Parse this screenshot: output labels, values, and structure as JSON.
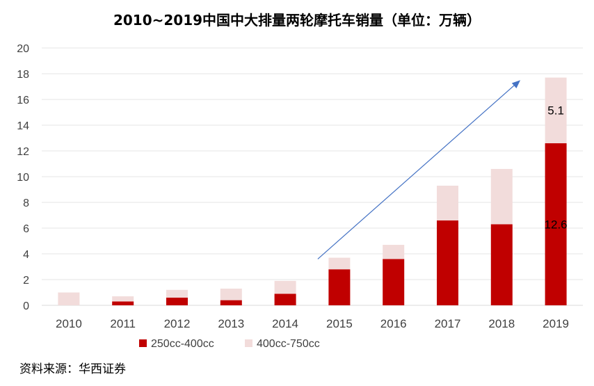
{
  "chart_data": {
    "type": "bar",
    "stacked": true,
    "title": "2010~2019中国中大排量两轮摩托车销量（单位：万辆）",
    "xlabel": "",
    "ylabel": "",
    "ylim": [
      0,
      20
    ],
    "yticks": [
      0,
      2,
      4,
      6,
      8,
      10,
      12,
      14,
      16,
      18,
      20
    ],
    "grid": true,
    "legend_position": "bottom-left",
    "categories": [
      "2010",
      "2011",
      "2012",
      "2013",
      "2014",
      "2015",
      "2016",
      "2017",
      "2018",
      "2019"
    ],
    "series": [
      {
        "name": "250cc-400cc",
        "color": "#C00000",
        "values": [
          0,
          0.3,
          0.6,
          0.4,
          0.9,
          2.8,
          3.6,
          6.6,
          6.3,
          12.6
        ]
      },
      {
        "name": "400cc-750cc",
        "color": "#F2DCDB",
        "values": [
          1.0,
          0.4,
          0.6,
          0.9,
          1.0,
          0.9,
          1.1,
          2.7,
          4.3,
          5.1
        ]
      }
    ],
    "data_labels": [
      {
        "text": "5.1",
        "category": "2019",
        "series": "400cc-750cc"
      },
      {
        "text": "12.6",
        "category": "2019",
        "series": "250cc-400cc"
      }
    ],
    "annotation_arrow": {
      "from": [
        "2015",
        3.6
      ],
      "to": [
        "2019",
        17.5
      ],
      "color": "#4472C4"
    },
    "source": "资料来源：华西证券"
  }
}
